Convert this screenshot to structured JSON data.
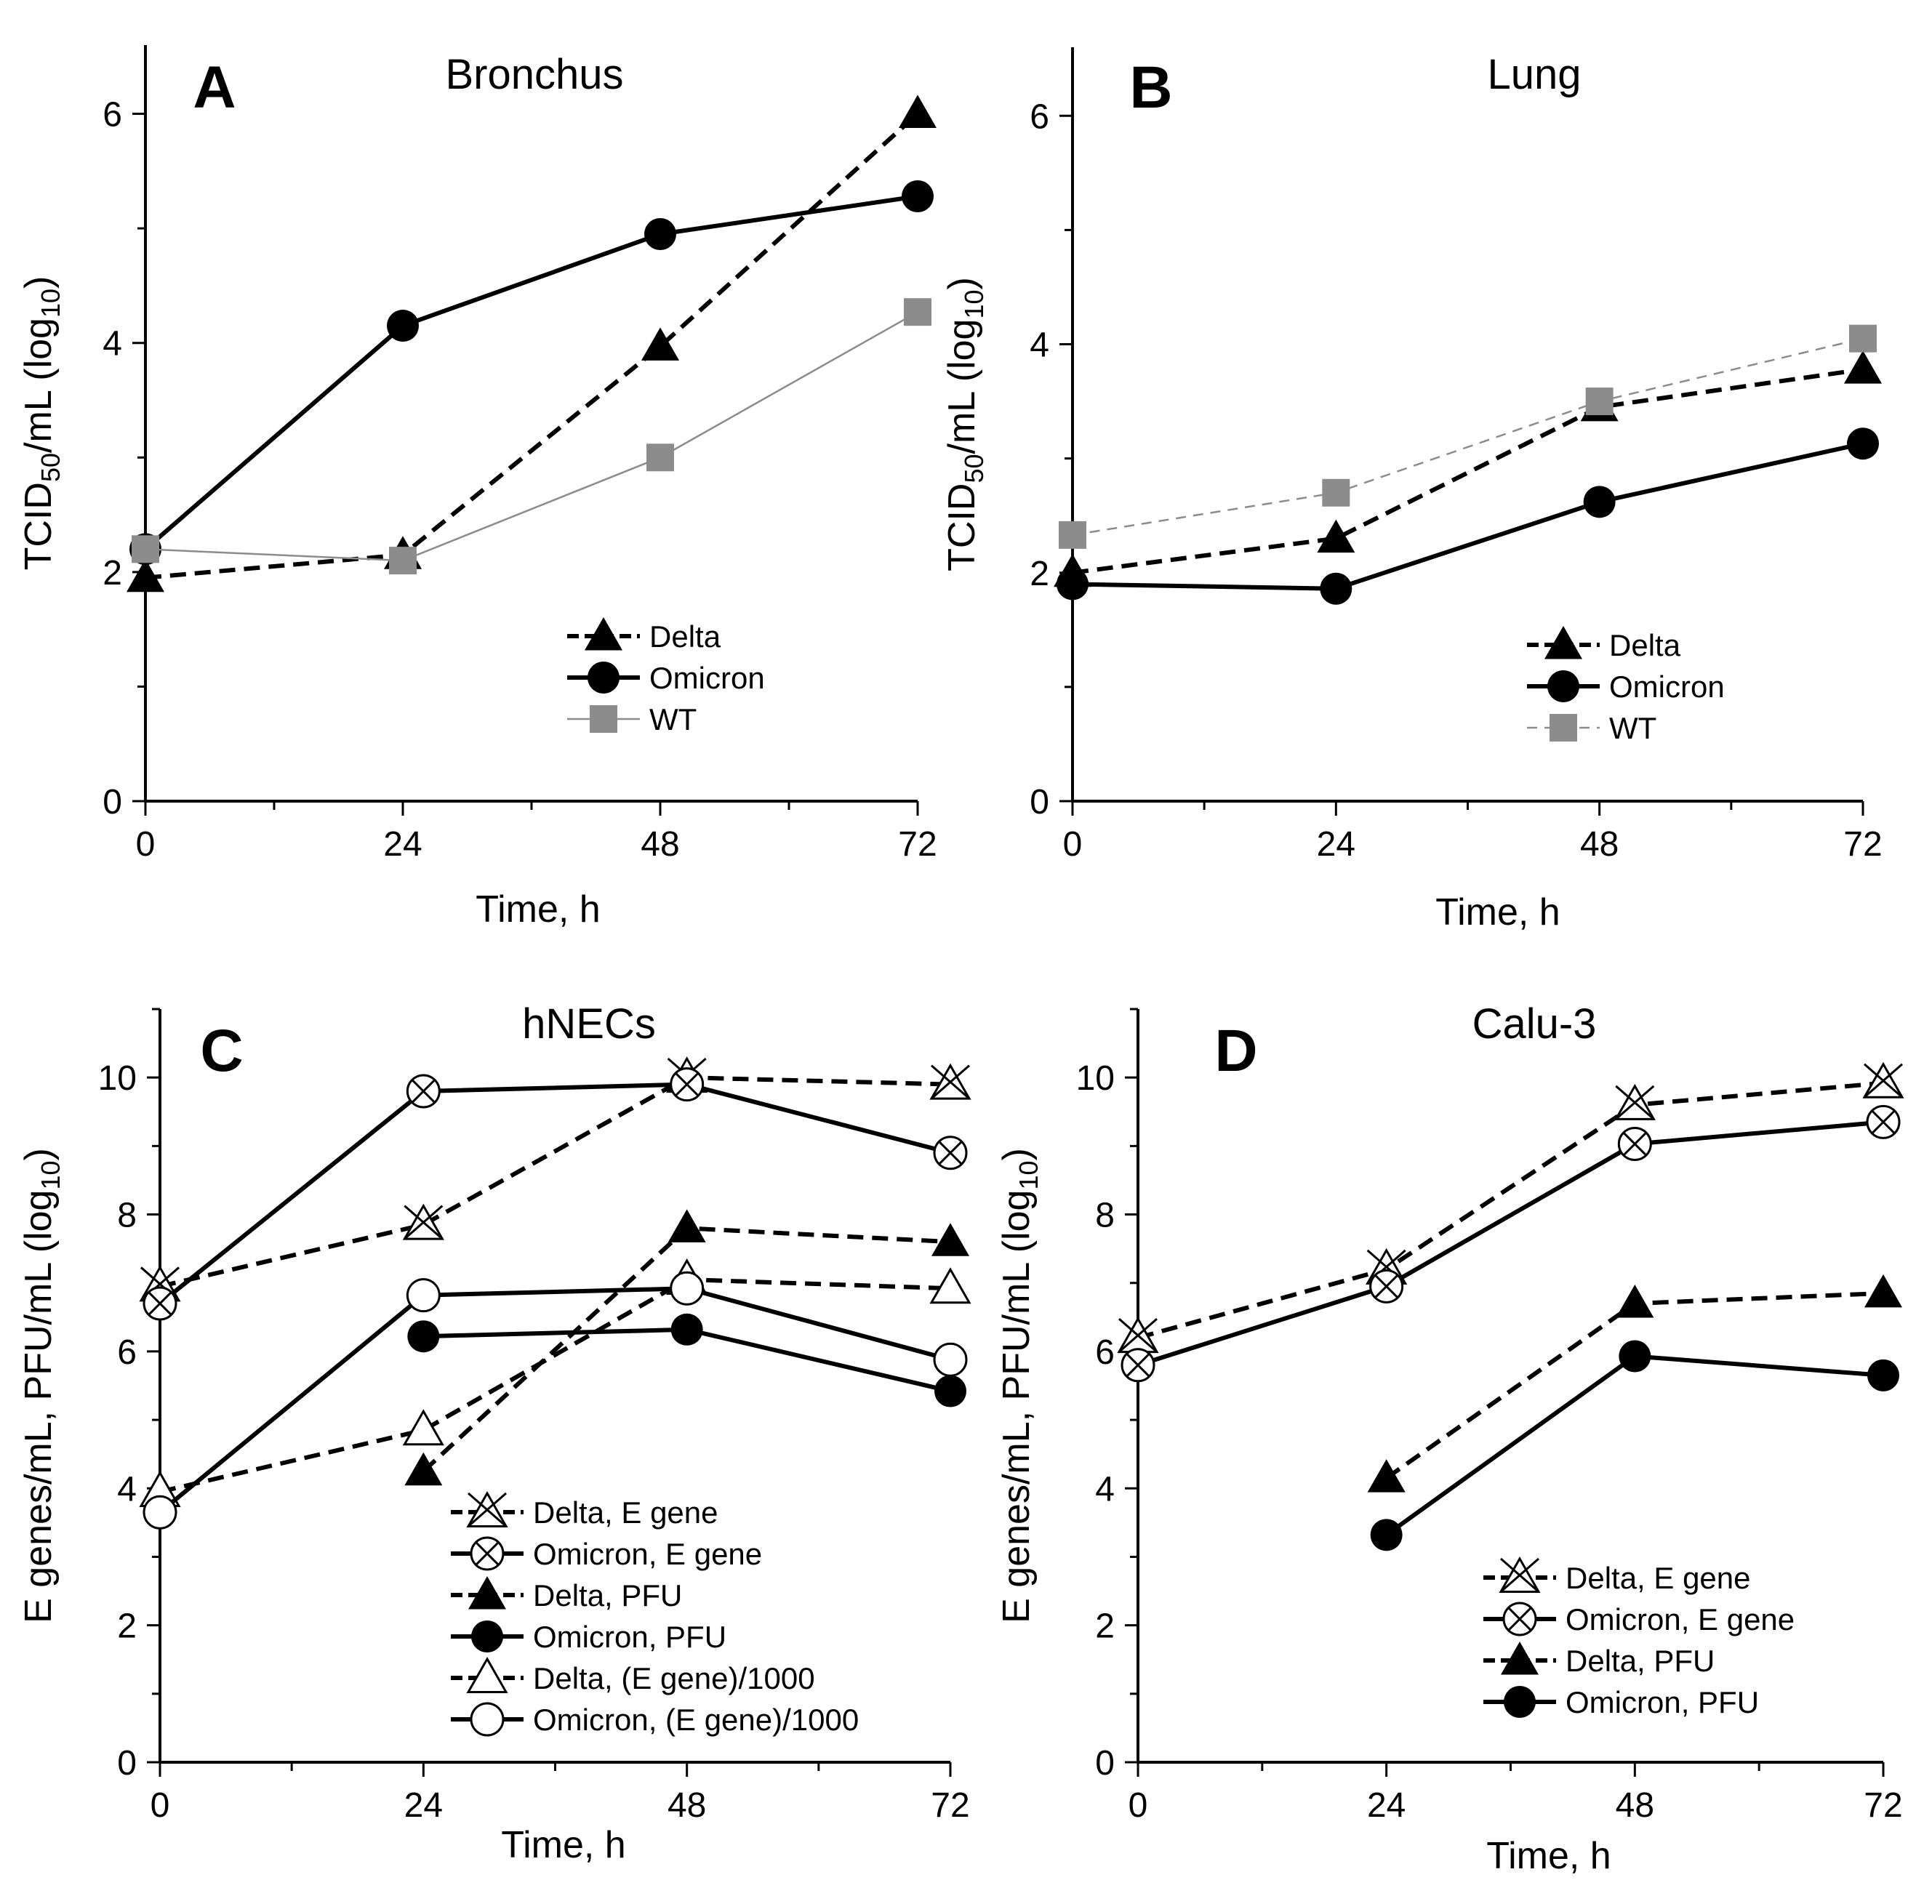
{
  "chart_data": [
    {
      "id": "A",
      "type": "line",
      "panel_label": "A",
      "title": "Bronchus",
      "xlabel": "Time, h",
      "ylabel": {
        "base": "TCID",
        "sub1": "50",
        "mid": "/mL (log",
        "sub2": "10",
        "end": ")"
      },
      "xlim": [
        0,
        72
      ],
      "ylim": [
        0,
        6.6
      ],
      "xticks": [
        0,
        24,
        48,
        72
      ],
      "yticks": [
        0,
        2,
        4,
        6
      ],
      "legend_position": "bottom-right",
      "series": [
        {
          "name": "Delta",
          "style": "dashed",
          "color": "#000000",
          "marker": "triangle",
          "x": [
            0,
            24,
            48,
            72
          ],
          "y": [
            1.95,
            2.15,
            3.97,
            6.0
          ]
        },
        {
          "name": "Omicron",
          "style": "solid",
          "color": "#000000",
          "marker": "circle",
          "x": [
            0,
            24,
            48,
            72
          ],
          "y": [
            2.2,
            4.15,
            4.95,
            5.28
          ]
        },
        {
          "name": "WT",
          "style": "thin",
          "color": "#8c8c8c",
          "marker": "square",
          "x": [
            0,
            24,
            48,
            72
          ],
          "y": [
            2.2,
            2.1,
            3.0,
            4.27
          ]
        }
      ]
    },
    {
      "id": "B",
      "type": "line",
      "panel_label": "B",
      "title": "Lung",
      "xlabel": "Time, h",
      "ylabel": {
        "base": "TCID",
        "sub1": "50",
        "mid": "/mL (log",
        "sub2": "10",
        "end": ")"
      },
      "xlim": [
        0,
        72
      ],
      "ylim": [
        0,
        6.6
      ],
      "xticks": [
        0,
        24,
        48,
        72
      ],
      "yticks": [
        0,
        2,
        4,
        6
      ],
      "legend_position": "bottom-right",
      "series": [
        {
          "name": "Delta",
          "style": "dashed",
          "color": "#000000",
          "marker": "triangle",
          "x": [
            0,
            24,
            48,
            72
          ],
          "y": [
            2.0,
            2.3,
            3.45,
            3.78
          ]
        },
        {
          "name": "Omicron",
          "style": "solid",
          "color": "#000000",
          "marker": "circle",
          "x": [
            0,
            24,
            48,
            72
          ],
          "y": [
            1.9,
            1.86,
            2.62,
            3.13
          ]
        },
        {
          "name": "WT",
          "style": "thin-dashed",
          "color": "#8c8c8c",
          "marker": "square",
          "x": [
            0,
            24,
            48,
            72
          ],
          "y": [
            2.33,
            2.7,
            3.5,
            4.05
          ]
        }
      ]
    },
    {
      "id": "C",
      "type": "line",
      "panel_label": "C",
      "title": "hNECs",
      "xlabel": "Time, h",
      "ylabel": {
        "base": "E genes/mL, PFU/mL  (log",
        "sub2": "10",
        "end": ")"
      },
      "xlim": [
        0,
        72
      ],
      "ylim": [
        0,
        11
      ],
      "xticks": [
        0,
        24,
        48,
        72
      ],
      "yticks": [
        0,
        2,
        4,
        6,
        8,
        10
      ],
      "legend_position": "bottom-right",
      "series": [
        {
          "name": "Delta, E gene",
          "style": "dashed",
          "color": "#000000",
          "marker": "triangle-x",
          "x": [
            0,
            24,
            48,
            72
          ],
          "y": [
            6.95,
            7.85,
            10.0,
            9.9
          ]
        },
        {
          "name": "Omicron, E gene",
          "style": "solid",
          "color": "#000000",
          "marker": "circle-x",
          "x": [
            0,
            24,
            48,
            72
          ],
          "y": [
            6.7,
            9.8,
            9.9,
            8.9
          ]
        },
        {
          "name": "Delta, PFU",
          "style": "dashed",
          "color": "#000000",
          "marker": "triangle",
          "x": [
            24,
            48,
            72
          ],
          "y": [
            4.25,
            7.8,
            7.6
          ]
        },
        {
          "name": "Omicron, PFU",
          "style": "solid",
          "color": "#000000",
          "marker": "circle",
          "x": [
            24,
            48,
            72
          ],
          "y": [
            6.22,
            6.32,
            5.42
          ]
        },
        {
          "name": "Delta, (E gene)/1000",
          "style": "dashed",
          "color": "#000000",
          "marker": "triangle-open",
          "x": [
            0,
            24,
            48,
            72
          ],
          "y": [
            3.95,
            4.85,
            7.05,
            6.92
          ]
        },
        {
          "name": "Omicron, (E gene)/1000",
          "style": "solid",
          "color": "#000000",
          "marker": "circle-open",
          "x": [
            0,
            24,
            48,
            72
          ],
          "y": [
            3.65,
            6.82,
            6.92,
            5.88
          ]
        }
      ]
    },
    {
      "id": "D",
      "type": "line",
      "panel_label": "D",
      "title": "Calu-3",
      "xlabel": "Time, h",
      "ylabel": {
        "base": "E genes/mL, PFU/mL  (log",
        "sub2": "10",
        "end": ")"
      },
      "xlim": [
        0,
        72
      ],
      "ylim": [
        0,
        11
      ],
      "xticks": [
        0,
        24,
        48,
        72
      ],
      "yticks": [
        0,
        2,
        4,
        6,
        8,
        10
      ],
      "legend_position": "bottom-right",
      "series": [
        {
          "name": "Delta, E gene",
          "style": "dashed",
          "color": "#000000",
          "marker": "triangle-x",
          "x": [
            0,
            24,
            48,
            72
          ],
          "y": [
            6.2,
            7.2,
            9.6,
            9.92
          ]
        },
        {
          "name": "Omicron, E gene",
          "style": "solid",
          "color": "#000000",
          "marker": "circle-x",
          "x": [
            0,
            24,
            48,
            72
          ],
          "y": [
            5.8,
            6.95,
            9.03,
            9.35
          ]
        },
        {
          "name": "Delta, PFU",
          "style": "dashed",
          "color": "#000000",
          "marker": "triangle",
          "x": [
            24,
            48,
            72
          ],
          "y": [
            4.15,
            6.7,
            6.85
          ]
        },
        {
          "name": "Omicron, PFU",
          "style": "solid",
          "color": "#000000",
          "marker": "circle",
          "x": [
            24,
            48,
            72
          ],
          "y": [
            3.32,
            5.93,
            5.65
          ]
        }
      ]
    }
  ]
}
